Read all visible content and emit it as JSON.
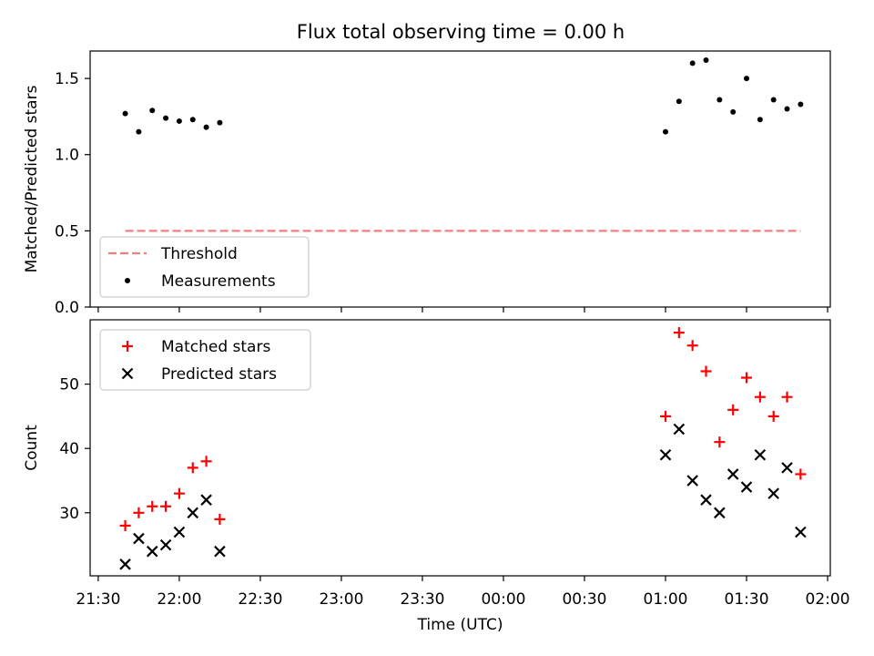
{
  "title": "Flux total observing time = 0.00 h",
  "chart_data": [
    {
      "type": "scatter",
      "title": "Flux total observing time = 0.00 h",
      "ylabel": "Matched/Predicted stars",
      "xlabel": "",
      "xlim": [
        "21:27",
        "02:01"
      ],
      "ylim": [
        0,
        1.68
      ],
      "yticks": [
        "0.0",
        "0.5",
        "1.0",
        "1.5"
      ],
      "grid": false,
      "legend": "lower-left",
      "series": [
        {
          "name": "Threshold",
          "kind": "dashed-line",
          "color": "#f08080",
          "x": [
            "21:40",
            "01:50"
          ],
          "y": [
            0.5,
            0.5
          ]
        },
        {
          "name": "Measurements",
          "kind": "dot",
          "color": "#000000",
          "x": [
            "21:40",
            "21:45",
            "21:50",
            "21:55",
            "22:00",
            "22:05",
            "22:10",
            "22:15",
            "01:00",
            "01:05",
            "01:10",
            "01:15",
            "01:20",
            "01:25",
            "01:30",
            "01:35",
            "01:40",
            "01:45",
            "01:50"
          ],
          "y": [
            1.27,
            1.15,
            1.29,
            1.24,
            1.22,
            1.23,
            1.18,
            1.21,
            1.15,
            1.35,
            1.6,
            1.62,
            1.36,
            1.28,
            1.5,
            1.23,
            1.36,
            1.3,
            1.33
          ]
        }
      ]
    },
    {
      "type": "scatter",
      "title": "",
      "ylabel": "Count",
      "xlabel": "Time (UTC)",
      "xlim": [
        "21:27",
        "02:01"
      ],
      "ylim": [
        20.2,
        60
      ],
      "xticks": [
        "21:30",
        "22:00",
        "22:30",
        "23:00",
        "23:30",
        "00:00",
        "00:30",
        "01:00",
        "01:30",
        "02:00"
      ],
      "yticks": [
        "30",
        "40",
        "50"
      ],
      "grid": false,
      "legend": "upper-left",
      "series": [
        {
          "name": "Matched stars",
          "kind": "plus",
          "color": "#ff0000",
          "x": [
            "21:40",
            "21:45",
            "21:50",
            "21:55",
            "22:00",
            "22:05",
            "22:10",
            "22:15",
            "01:00",
            "01:05",
            "01:10",
            "01:15",
            "01:20",
            "01:25",
            "01:30",
            "01:35",
            "01:40",
            "01:45",
            "01:50"
          ],
          "y": [
            28,
            30,
            31,
            31,
            33,
            37,
            38,
            29,
            45,
            58,
            56,
            52,
            41,
            46,
            51,
            48,
            45,
            48,
            36
          ]
        },
        {
          "name": "Predicted stars",
          "kind": "x",
          "color": "#000000",
          "x": [
            "21:40",
            "21:45",
            "21:50",
            "21:55",
            "22:00",
            "22:05",
            "22:10",
            "22:15",
            "01:00",
            "01:05",
            "01:10",
            "01:15",
            "01:20",
            "01:25",
            "01:30",
            "01:35",
            "01:40",
            "01:45",
            "01:50"
          ],
          "y": [
            22,
            26,
            24,
            25,
            27,
            30,
            32,
            24,
            39,
            43,
            35,
            32,
            30,
            36,
            34,
            39,
            33,
            37,
            27
          ]
        }
      ]
    }
  ]
}
